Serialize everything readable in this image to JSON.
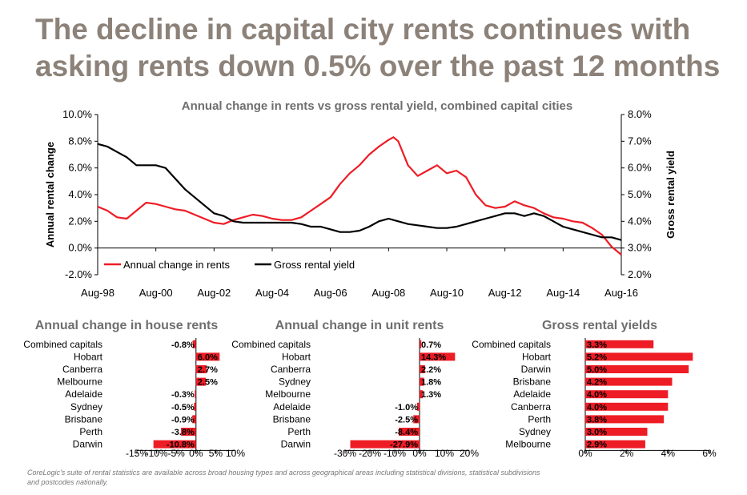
{
  "headline": [
    "The decline in capital city rents continues with",
    "asking rents down 0.5% over the past 12 months"
  ],
  "footnote": [
    "CoreLogic's suite of rental statistics are available across broad housing types and across geographical areas including statistical divisions, statistical subdivisions",
    "and postcodes nationally."
  ],
  "colors": {
    "red": "#ee1c25",
    "black": "#000000",
    "title_gray": "#8c8279",
    "subtitle_gray": "#6e6e6e"
  },
  "chart_data": [
    {
      "type": "line",
      "title": "Annual change in rents vs gross rental yield, combined capital cities",
      "ylabel": "Annual rental change",
      "y2label": "Gross rental yield",
      "ylim": [
        -2,
        10
      ],
      "y2lim": [
        2,
        8
      ],
      "xlim": [
        "1998-08",
        "2016-08"
      ],
      "y_ticks": [
        "-2.0%",
        "0.0%",
        "2.0%",
        "4.0%",
        "6.0%",
        "8.0%",
        "10.0%"
      ],
      "y2_ticks": [
        "2.0%",
        "3.0%",
        "4.0%",
        "5.0%",
        "6.0%",
        "7.0%",
        "8.0%"
      ],
      "x_ticks": [
        "Aug-98",
        "Aug-00",
        "Aug-02",
        "Aug-04",
        "Aug-06",
        "Aug-08",
        "Aug-10",
        "Aug-12",
        "Aug-14",
        "Aug-16"
      ],
      "legend": "bottom-left",
      "grid": false,
      "series": [
        {
          "name": "Annual change in rents",
          "axis": "left",
          "color": "#ee1c25",
          "x": [
            "1998-08",
            "1998-12",
            "1999-04",
            "1999-08",
            "1999-12",
            "2000-04",
            "2000-08",
            "2000-12",
            "2001-04",
            "2001-08",
            "2001-12",
            "2002-04",
            "2002-08",
            "2002-12",
            "2003-04",
            "2003-08",
            "2003-12",
            "2004-04",
            "2004-08",
            "2004-12",
            "2005-04",
            "2005-08",
            "2005-12",
            "2006-04",
            "2006-08",
            "2006-12",
            "2007-04",
            "2007-08",
            "2007-12",
            "2008-04",
            "2008-08",
            "2008-10",
            "2008-12",
            "2009-04",
            "2009-08",
            "2009-12",
            "2010-04",
            "2010-08",
            "2010-12",
            "2011-04",
            "2011-08",
            "2011-12",
            "2012-04",
            "2012-08",
            "2012-12",
            "2013-04",
            "2013-08",
            "2013-12",
            "2014-04",
            "2014-08",
            "2014-12",
            "2015-04",
            "2015-08",
            "2015-12",
            "2016-04",
            "2016-08"
          ],
          "values": [
            3.1,
            2.8,
            2.3,
            2.2,
            2.8,
            3.4,
            3.3,
            3.1,
            2.9,
            2.8,
            2.5,
            2.2,
            1.9,
            1.8,
            2.1,
            2.3,
            2.5,
            2.4,
            2.2,
            2.1,
            2.1,
            2.3,
            2.8,
            3.3,
            3.8,
            4.8,
            5.6,
            6.2,
            7.0,
            7.6,
            8.1,
            8.3,
            8.0,
            6.2,
            5.4,
            5.8,
            6.2,
            5.6,
            5.8,
            5.3,
            4.0,
            3.2,
            3.0,
            3.1,
            3.5,
            3.2,
            3.0,
            2.6,
            2.3,
            2.2,
            2.0,
            1.9,
            1.5,
            1.0,
            0.1,
            -0.5
          ]
        },
        {
          "name": "Gross rental yield",
          "axis": "right",
          "color": "#000000",
          "x": [
            "1998-08",
            "1998-12",
            "1999-04",
            "1999-08",
            "1999-12",
            "2000-04",
            "2000-08",
            "2000-12",
            "2001-04",
            "2001-08",
            "2001-12",
            "2002-04",
            "2002-08",
            "2002-12",
            "2003-04",
            "2003-08",
            "2003-12",
            "2004-04",
            "2004-08",
            "2004-12",
            "2005-04",
            "2005-08",
            "2005-12",
            "2006-04",
            "2006-08",
            "2006-12",
            "2007-04",
            "2007-08",
            "2007-12",
            "2008-04",
            "2008-08",
            "2008-12",
            "2009-04",
            "2009-08",
            "2009-12",
            "2010-04",
            "2010-08",
            "2010-12",
            "2011-04",
            "2011-08",
            "2011-12",
            "2012-04",
            "2012-08",
            "2012-12",
            "2013-04",
            "2013-08",
            "2013-12",
            "2014-04",
            "2014-08",
            "2014-12",
            "2015-04",
            "2015-08",
            "2015-12",
            "2016-04",
            "2016-08"
          ],
          "values": [
            6.9,
            6.8,
            6.6,
            6.4,
            6.1,
            6.1,
            6.1,
            6.0,
            5.6,
            5.2,
            4.9,
            4.6,
            4.3,
            4.2,
            4.0,
            3.95,
            3.95,
            3.95,
            3.95,
            3.95,
            3.95,
            3.9,
            3.8,
            3.8,
            3.7,
            3.6,
            3.6,
            3.65,
            3.8,
            4.0,
            4.1,
            4.0,
            3.9,
            3.85,
            3.8,
            3.75,
            3.75,
            3.8,
            3.9,
            4.0,
            4.1,
            4.2,
            4.3,
            4.3,
            4.2,
            4.3,
            4.2,
            4.0,
            3.8,
            3.7,
            3.6,
            3.5,
            3.4,
            3.4,
            3.3
          ]
        }
      ]
    },
    {
      "type": "bar",
      "orientation": "horizontal",
      "title": "Annual change in house rents",
      "categories": [
        "Combined capitals",
        "Hobart",
        "Canberra",
        "Melbourne",
        "Adelaide",
        "Sydney",
        "Brisbane",
        "Perth",
        "Darwin"
      ],
      "values": [
        -0.8,
        6.0,
        2.7,
        2.5,
        -0.3,
        -0.5,
        -0.9,
        -3.8,
        -10.8
      ],
      "labels": [
        "-0.8%",
        "6.0%",
        "2.7%",
        "2.5%",
        "-0.3%",
        "-0.5%",
        "-0.9%",
        "-3.8%",
        "-10.8%"
      ],
      "xlim": [
        -15,
        10
      ],
      "x_ticks": [
        "-15%",
        "-10%",
        "-5%",
        "0%",
        "5%",
        "10%"
      ],
      "color": "#ee1c25"
    },
    {
      "type": "bar",
      "orientation": "horizontal",
      "title": "Annual change in unit rents",
      "categories": [
        "Combined capitals",
        "Hobart",
        "Canberra",
        "Sydney",
        "Melbourne",
        "Adelaide",
        "Brisbane",
        "Perth",
        "Darwin"
      ],
      "values": [
        0.7,
        14.3,
        2.2,
        1.8,
        1.3,
        -1.0,
        -2.5,
        -8.4,
        -27.9
      ],
      "labels": [
        "0.7%",
        "14.3%",
        "2.2%",
        "1.8%",
        "1.3%",
        "-1.0%",
        "-2.5%",
        "-8.4%",
        "-27.9%"
      ],
      "xlim": [
        -30,
        20
      ],
      "x_ticks": [
        "-30%",
        "-20%",
        "-10%",
        "0%",
        "10%",
        "20%"
      ],
      "color": "#ee1c25"
    },
    {
      "type": "bar",
      "orientation": "horizontal",
      "title": "Gross rental yields",
      "categories": [
        "Combined capitals",
        "Hobart",
        "Darwin",
        "Brisbane",
        "Adelaide",
        "Canberra",
        "Perth",
        "Sydney",
        "Melbourne"
      ],
      "values": [
        3.3,
        5.2,
        5.0,
        4.2,
        4.0,
        4.0,
        3.8,
        3.0,
        2.9
      ],
      "labels": [
        "3.3%",
        "5.2%",
        "5.0%",
        "4.2%",
        "4.0%",
        "4.0%",
        "3.8%",
        "3.0%",
        "2.9%"
      ],
      "xlim": [
        0,
        6
      ],
      "x_ticks": [
        "0%",
        "2%",
        "4%",
        "6%"
      ],
      "color": "#ee1c25"
    }
  ]
}
